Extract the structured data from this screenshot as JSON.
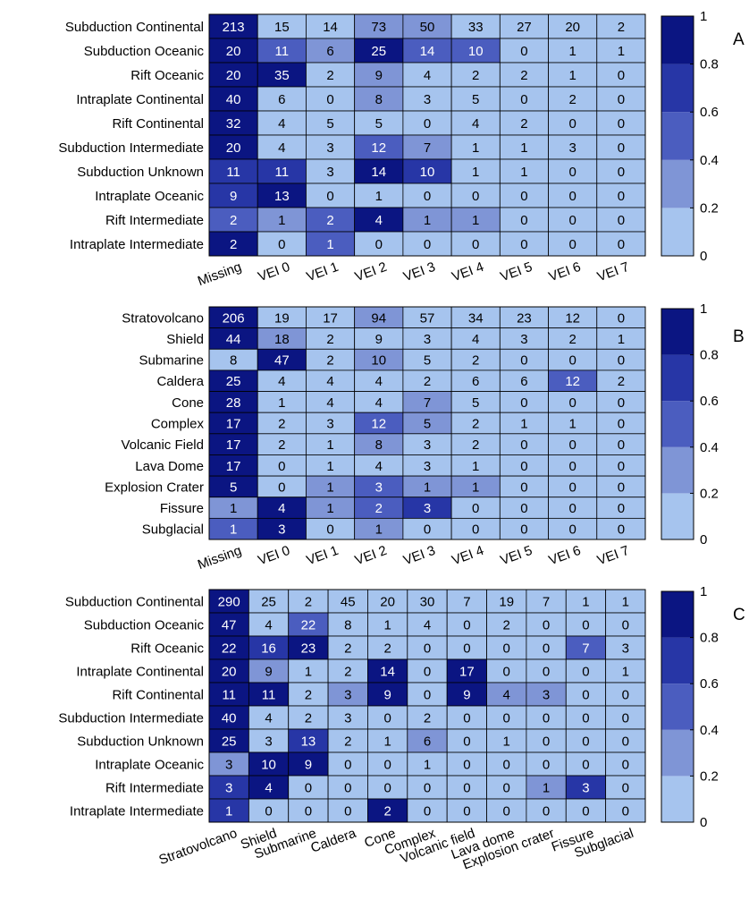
{
  "palette": [
    "#a6c4ee",
    "#7f95d6",
    "#4b5dbf",
    "#2736a6",
    "#0b1582"
  ],
  "colorbar": {
    "ticks": [
      "1",
      "0.8",
      "0.6",
      "0.4",
      "0.2",
      "0"
    ],
    "tick_values": [
      1,
      0.8,
      0.6,
      0.4,
      0.2,
      0
    ]
  },
  "chart_data": [
    {
      "type": "heatmap",
      "panel": "A",
      "rows": [
        "Subduction Continental",
        "Subduction Oceanic",
        "Rift Oceanic",
        "Intraplate Continental",
        "Rift Continental",
        "Subduction Intermediate",
        "Subduction Unknown",
        "Intraplate Oceanic",
        "Rift Intermediate",
        "Intraplate Intermediate"
      ],
      "columns": [
        "Missing",
        "VEI 0",
        "VEI 1",
        "VEI 2",
        "VEI 3",
        "VEI 4",
        "VEI 5",
        "VEI 6",
        "VEI 7"
      ],
      "values": [
        [
          213,
          15,
          14,
          73,
          50,
          33,
          27,
          20,
          2
        ],
        [
          20,
          11,
          6,
          25,
          14,
          10,
          0,
          1,
          1
        ],
        [
          20,
          35,
          2,
          9,
          4,
          2,
          2,
          1,
          0
        ],
        [
          40,
          6,
          0,
          8,
          3,
          5,
          0,
          2,
          0
        ],
        [
          32,
          4,
          5,
          5,
          0,
          4,
          2,
          0,
          0
        ],
        [
          20,
          4,
          3,
          12,
          7,
          1,
          1,
          3,
          0
        ],
        [
          11,
          11,
          3,
          14,
          10,
          1,
          1,
          0,
          0
        ],
        [
          9,
          13,
          0,
          1,
          0,
          0,
          0,
          0,
          0
        ],
        [
          2,
          1,
          2,
          4,
          1,
          1,
          0,
          0,
          0
        ],
        [
          2,
          0,
          1,
          0,
          0,
          0,
          0,
          0,
          0
        ]
      ],
      "color_levels": [
        [
          4,
          0,
          0,
          1,
          1,
          0,
          0,
          0,
          0
        ],
        [
          4,
          2,
          1,
          4,
          2,
          2,
          0,
          0,
          0
        ],
        [
          4,
          4,
          0,
          1,
          0,
          0,
          0,
          0,
          0
        ],
        [
          4,
          0,
          0,
          1,
          0,
          0,
          0,
          0,
          0
        ],
        [
          4,
          0,
          0,
          0,
          0,
          0,
          0,
          0,
          0
        ],
        [
          4,
          0,
          0,
          2,
          1,
          0,
          0,
          0,
          0
        ],
        [
          3,
          3,
          0,
          4,
          3,
          0,
          0,
          0,
          0
        ],
        [
          3,
          4,
          0,
          0,
          0,
          0,
          0,
          0,
          0
        ],
        [
          2,
          1,
          2,
          4,
          1,
          1,
          0,
          0,
          0
        ],
        [
          4,
          0,
          2,
          0,
          0,
          0,
          0,
          0,
          0
        ]
      ],
      "colorbar_range": [
        0,
        1
      ]
    },
    {
      "type": "heatmap",
      "panel": "B",
      "rows": [
        "Stratovolcano",
        "Shield",
        "Submarine",
        "Caldera",
        "Cone",
        "Complex",
        "Volcanic Field",
        "Lava Dome",
        "Explosion Crater",
        "Fissure",
        "Subglacial"
      ],
      "columns": [
        "Missing",
        "VEI 0",
        "VEI 1",
        "VEI 2",
        "VEI 3",
        "VEI 4",
        "VEI 5",
        "VEI 6",
        "VEI 7"
      ],
      "values": [
        [
          206,
          19,
          17,
          94,
          57,
          34,
          23,
          12,
          0
        ],
        [
          44,
          18,
          2,
          9,
          3,
          4,
          3,
          2,
          1
        ],
        [
          8,
          47,
          2,
          10,
          5,
          2,
          0,
          0,
          0
        ],
        [
          25,
          4,
          4,
          4,
          2,
          6,
          6,
          12,
          2
        ],
        [
          28,
          1,
          4,
          4,
          7,
          5,
          0,
          0,
          0
        ],
        [
          17,
          2,
          3,
          12,
          5,
          2,
          1,
          1,
          0
        ],
        [
          17,
          2,
          1,
          8,
          3,
          2,
          0,
          0,
          0
        ],
        [
          17,
          0,
          1,
          4,
          3,
          1,
          0,
          0,
          0
        ],
        [
          5,
          0,
          1,
          3,
          1,
          1,
          0,
          0,
          0
        ],
        [
          1,
          4,
          1,
          2,
          3,
          0,
          0,
          0,
          0
        ],
        [
          1,
          3,
          0,
          1,
          0,
          0,
          0,
          0,
          0
        ]
      ],
      "color_levels": [
        [
          4,
          0,
          0,
          1,
          0,
          0,
          0,
          0,
          0
        ],
        [
          4,
          1,
          0,
          0,
          0,
          0,
          0,
          0,
          0
        ],
        [
          0,
          4,
          0,
          1,
          0,
          0,
          0,
          0,
          0
        ],
        [
          4,
          0,
          0,
          0,
          0,
          0,
          0,
          2,
          0
        ],
        [
          4,
          0,
          0,
          0,
          1,
          0,
          0,
          0,
          0
        ],
        [
          4,
          0,
          0,
          2,
          1,
          0,
          0,
          0,
          0
        ],
        [
          4,
          0,
          0,
          1,
          0,
          0,
          0,
          0,
          0
        ],
        [
          4,
          0,
          0,
          0,
          0,
          0,
          0,
          0,
          0
        ],
        [
          4,
          0,
          1,
          2,
          1,
          1,
          0,
          0,
          0
        ],
        [
          1,
          4,
          1,
          2,
          3,
          0,
          0,
          0,
          0
        ],
        [
          2,
          4,
          0,
          1,
          0,
          0,
          0,
          0,
          0
        ]
      ],
      "colorbar_range": [
        0,
        1
      ]
    },
    {
      "type": "heatmap",
      "panel": "C",
      "rows": [
        "Subduction Continental",
        "Subduction Oceanic",
        "Rift Oceanic",
        "Intraplate Continental",
        "Rift Continental",
        "Subduction Intermediate",
        "Subduction Unknown",
        "Intraplate Oceanic",
        "Rift Intermediate",
        "Intraplate Intermediate"
      ],
      "columns": [
        "Stratovolcano",
        "Shield",
        "Submarine",
        "Caldera",
        "Cone",
        "Complex",
        "Volcanic field",
        "Lava dome",
        "Explosion crater",
        "Fissure",
        "Subglacial"
      ],
      "values": [
        [
          290,
          25,
          2,
          45,
          20,
          30,
          7,
          19,
          7,
          1,
          1
        ],
        [
          47,
          4,
          22,
          8,
          1,
          4,
          0,
          2,
          0,
          0,
          0
        ],
        [
          22,
          16,
          23,
          2,
          2,
          0,
          0,
          0,
          0,
          7,
          3
        ],
        [
          20,
          9,
          1,
          2,
          14,
          0,
          17,
          0,
          0,
          0,
          1
        ],
        [
          11,
          11,
          2,
          3,
          9,
          0,
          9,
          4,
          3,
          0,
          0
        ],
        [
          40,
          4,
          2,
          3,
          0,
          2,
          0,
          0,
          0,
          0,
          0
        ],
        [
          25,
          3,
          13,
          2,
          1,
          6,
          0,
          1,
          0,
          0,
          0
        ],
        [
          3,
          10,
          9,
          0,
          0,
          1,
          0,
          0,
          0,
          0,
          0
        ],
        [
          3,
          4,
          0,
          0,
          0,
          0,
          0,
          0,
          1,
          3,
          0
        ],
        [
          1,
          0,
          0,
          0,
          2,
          0,
          0,
          0,
          0,
          0,
          0
        ]
      ],
      "color_levels": [
        [
          4,
          0,
          0,
          0,
          0,
          0,
          0,
          0,
          0,
          0,
          0
        ],
        [
          4,
          0,
          2,
          0,
          0,
          0,
          0,
          0,
          0,
          0,
          0
        ],
        [
          4,
          3,
          4,
          0,
          0,
          0,
          0,
          0,
          0,
          2,
          0
        ],
        [
          4,
          1,
          0,
          0,
          4,
          0,
          4,
          0,
          0,
          0,
          0
        ],
        [
          4,
          4,
          0,
          1,
          4,
          0,
          4,
          1,
          1,
          0,
          0
        ],
        [
          4,
          0,
          0,
          0,
          0,
          0,
          0,
          0,
          0,
          0,
          0
        ],
        [
          4,
          0,
          3,
          0,
          0,
          1,
          0,
          0,
          0,
          0,
          0
        ],
        [
          1,
          4,
          4,
          0,
          0,
          0,
          0,
          0,
          0,
          0,
          0
        ],
        [
          3,
          4,
          0,
          0,
          0,
          0,
          0,
          0,
          1,
          3,
          0
        ],
        [
          3,
          0,
          0,
          0,
          4,
          0,
          0,
          0,
          0,
          0,
          0
        ]
      ],
      "colorbar_range": [
        0,
        1
      ]
    }
  ]
}
